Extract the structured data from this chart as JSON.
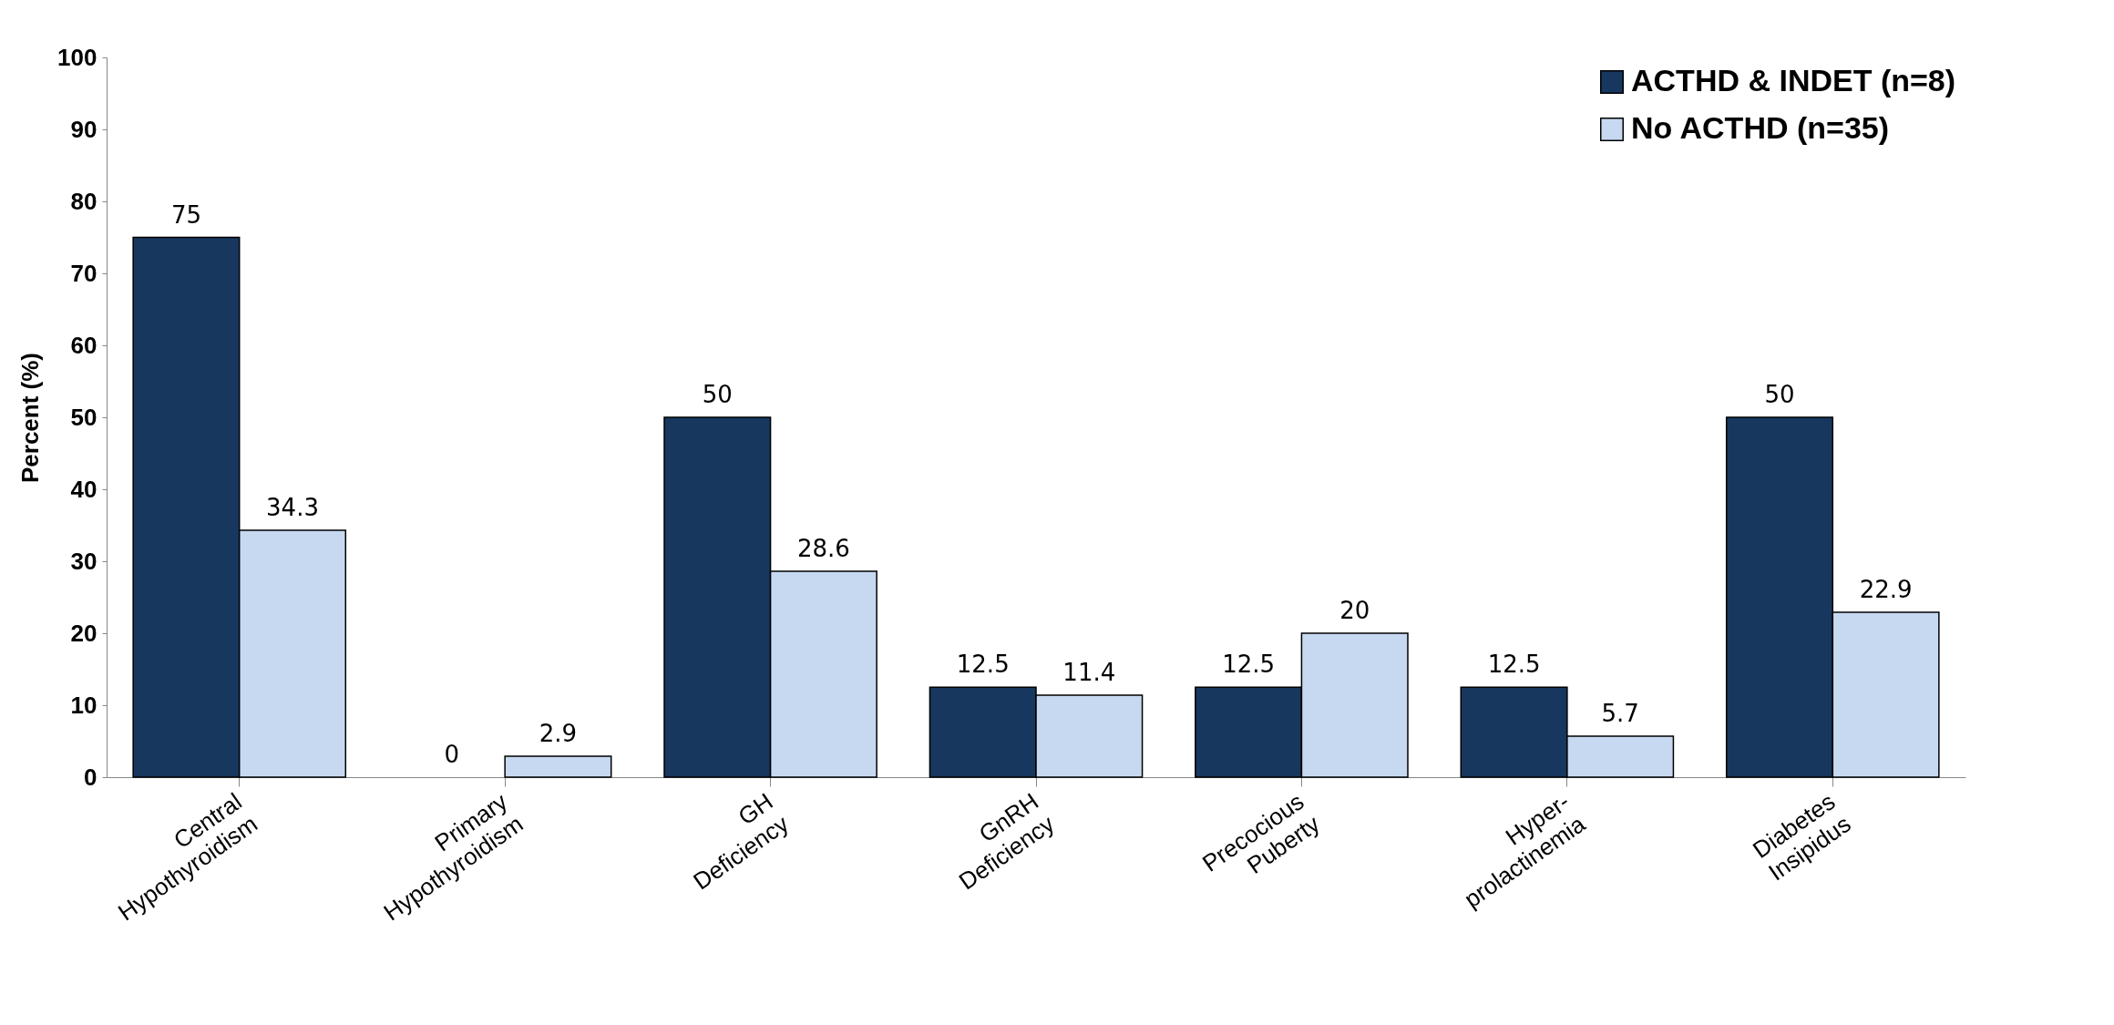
{
  "chart_data": {
    "type": "bar",
    "ylabel": "Percent (%)",
    "categories": [
      "Central\nHypothyroidism",
      "Primary\nHypothyroidism",
      "GH\nDeficiency",
      "GnRH\nDeficiency",
      "Precocious\nPuberty",
      "Hyper-\nprolactinemia",
      "Diabetes\nInsipidus"
    ],
    "series": [
      {
        "name": "ACTHD & INDET (n=8)",
        "color": "#17375e",
        "values": [
          75,
          0,
          50,
          12.5,
          12.5,
          12.5,
          50
        ]
      },
      {
        "name": "No ACTHD (n=35)",
        "color": "#c6d9f1",
        "values": [
          34.3,
          2.9,
          28.6,
          11.4,
          20,
          5.7,
          22.9
        ]
      }
    ],
    "ylim": [
      0,
      100
    ],
    "yticks": [
      0,
      10,
      20,
      30,
      40,
      50,
      60,
      70,
      80,
      90,
      100
    ],
    "grid": false,
    "legend": "top right",
    "data_labels": true
  }
}
